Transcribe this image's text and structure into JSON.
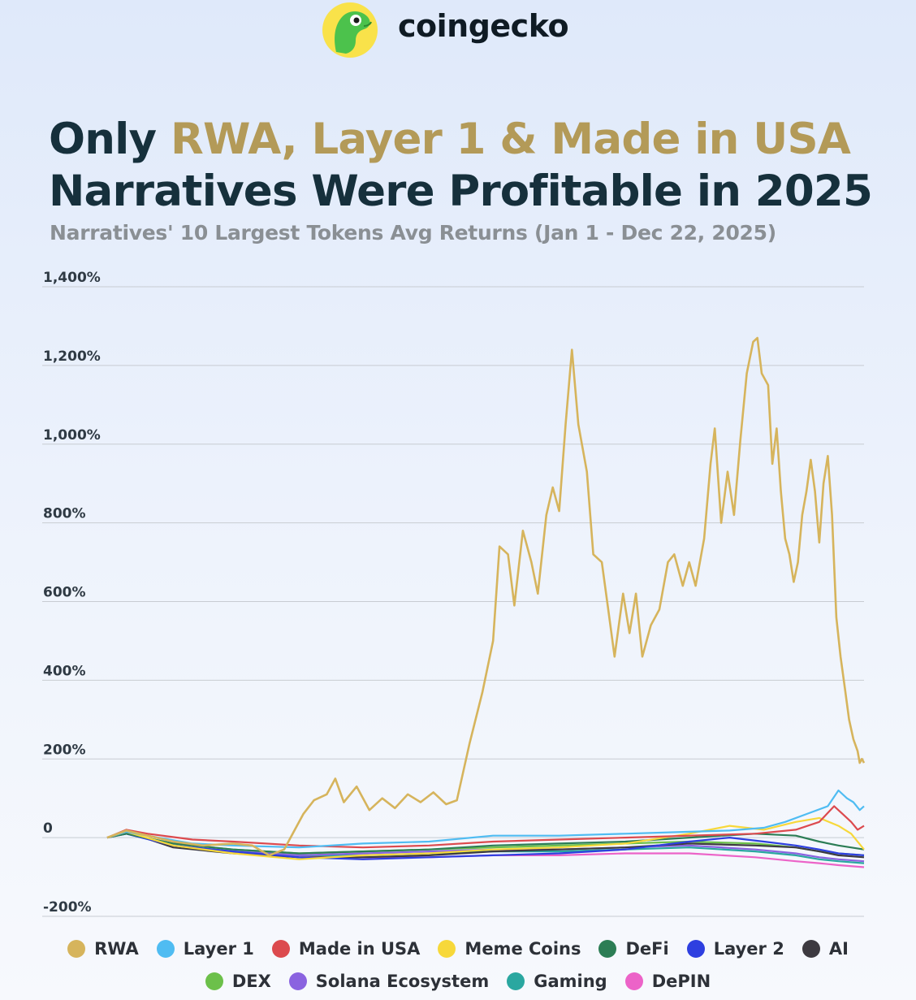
{
  "brand": {
    "name": "coingecko",
    "logo_icon": "gecko-logo-icon"
  },
  "header": {
    "title_pre": "Only ",
    "title_highlight": "RWA, Layer 1 & Made in USA",
    "title_post": "Narratives Were Profitable in 2025",
    "subtitle": "Narratives' 10 Largest Tokens Avg Returns (Jan 1 - Dec 22, 2025)"
  },
  "chart_data": {
    "type": "line",
    "title": "Only RWA, Layer 1 & Made in USA Narratives Were Profitable in 2025",
    "subtitle": "Narratives' 10 Largest Tokens Avg Returns (Jan 1 - Dec 22, 2025)",
    "xlabel": "",
    "ylabel": "",
    "x_range": [
      "2025-01-01",
      "2025-12-22"
    ],
    "ylim": [
      -200,
      1400
    ],
    "y_ticks": [
      -200,
      0,
      200,
      400,
      600,
      800,
      1000,
      1200,
      1400
    ],
    "y_tick_labels": [
      "-200%",
      "0",
      "200%",
      "400%",
      "600%",
      "800%",
      "1,000%",
      "1,200%",
      "1,400%"
    ],
    "grid": true,
    "legend_position": "bottom",
    "series": [
      {
        "name": "RWA",
        "color": "#d6b45c",
        "points": [
          [
            "2025-01-01",
            0
          ],
          [
            "2025-01-10",
            18
          ],
          [
            "2025-01-20",
            5
          ],
          [
            "2025-02-01",
            -10
          ],
          [
            "2025-02-15",
            -20
          ],
          [
            "2025-03-01",
            -15
          ],
          [
            "2025-03-10",
            -20
          ],
          [
            "2025-03-18",
            -45
          ],
          [
            "2025-03-25",
            -30
          ],
          [
            "2025-04-03",
            60
          ],
          [
            "2025-04-08",
            95
          ],
          [
            "2025-04-14",
            110
          ],
          [
            "2025-04-18",
            150
          ],
          [
            "2025-04-22",
            90
          ],
          [
            "2025-04-28",
            130
          ],
          [
            "2025-05-04",
            70
          ],
          [
            "2025-05-10",
            100
          ],
          [
            "2025-05-16",
            75
          ],
          [
            "2025-05-22",
            110
          ],
          [
            "2025-05-28",
            90
          ],
          [
            "2025-06-03",
            115
          ],
          [
            "2025-06-09",
            85
          ],
          [
            "2025-06-14",
            95
          ],
          [
            "2025-06-20",
            240
          ],
          [
            "2025-06-26",
            370
          ],
          [
            "2025-07-01",
            500
          ],
          [
            "2025-07-04",
            740
          ],
          [
            "2025-07-08",
            720
          ],
          [
            "2025-07-11",
            590
          ],
          [
            "2025-07-15",
            780
          ],
          [
            "2025-07-19",
            700
          ],
          [
            "2025-07-22",
            620
          ],
          [
            "2025-07-26",
            820
          ],
          [
            "2025-07-29",
            890
          ],
          [
            "2025-08-01",
            830
          ],
          [
            "2025-08-04",
            1050
          ],
          [
            "2025-08-07",
            1240
          ],
          [
            "2025-08-10",
            1050
          ],
          [
            "2025-08-14",
            930
          ],
          [
            "2025-08-17",
            720
          ],
          [
            "2025-08-21",
            700
          ],
          [
            "2025-08-24",
            580
          ],
          [
            "2025-08-27",
            460
          ],
          [
            "2025-08-31",
            620
          ],
          [
            "2025-09-03",
            520
          ],
          [
            "2025-09-06",
            620
          ],
          [
            "2025-09-09",
            460
          ],
          [
            "2025-09-13",
            540
          ],
          [
            "2025-09-17",
            580
          ],
          [
            "2025-09-21",
            700
          ],
          [
            "2025-09-24",
            720
          ],
          [
            "2025-09-28",
            640
          ],
          [
            "2025-10-01",
            700
          ],
          [
            "2025-10-04",
            640
          ],
          [
            "2025-10-08",
            760
          ],
          [
            "2025-10-11",
            950
          ],
          [
            "2025-10-13",
            1040
          ],
          [
            "2025-10-16",
            800
          ],
          [
            "2025-10-19",
            930
          ],
          [
            "2025-10-22",
            820
          ],
          [
            "2025-10-25",
            1010
          ],
          [
            "2025-10-28",
            1180
          ],
          [
            "2025-10-31",
            1260
          ],
          [
            "2025-11-02",
            1270
          ],
          [
            "2025-11-04",
            1180
          ],
          [
            "2025-11-07",
            1150
          ],
          [
            "2025-11-09",
            950
          ],
          [
            "2025-11-11",
            1040
          ],
          [
            "2025-11-13",
            880
          ],
          [
            "2025-11-15",
            760
          ],
          [
            "2025-11-17",
            720
          ],
          [
            "2025-11-19",
            650
          ],
          [
            "2025-11-21",
            700
          ],
          [
            "2025-11-23",
            820
          ],
          [
            "2025-11-25",
            880
          ],
          [
            "2025-11-27",
            960
          ],
          [
            "2025-11-29",
            880
          ],
          [
            "2025-12-01",
            750
          ],
          [
            "2025-12-03",
            900
          ],
          [
            "2025-12-05",
            970
          ],
          [
            "2025-12-07",
            820
          ],
          [
            "2025-12-09",
            560
          ],
          [
            "2025-12-11",
            460
          ],
          [
            "2025-12-13",
            380
          ],
          [
            "2025-12-15",
            300
          ],
          [
            "2025-12-17",
            250
          ],
          [
            "2025-12-19",
            220
          ],
          [
            "2025-12-20",
            190
          ],
          [
            "2025-12-21",
            200
          ],
          [
            "2025-12-22",
            190
          ]
        ]
      },
      {
        "name": "Layer 1",
        "color": "#4fbcf2",
        "points": [
          [
            "2025-01-01",
            0
          ],
          [
            "2025-01-10",
            15
          ],
          [
            "2025-01-25",
            0
          ],
          [
            "2025-02-10",
            -15
          ],
          [
            "2025-03-01",
            -20
          ],
          [
            "2025-04-01",
            -25
          ],
          [
            "2025-05-01",
            -15
          ],
          [
            "2025-06-01",
            -10
          ],
          [
            "2025-07-01",
            5
          ],
          [
            "2025-08-01",
            5
          ],
          [
            "2025-09-01",
            10
          ],
          [
            "2025-10-01",
            15
          ],
          [
            "2025-10-20",
            18
          ],
          [
            "2025-11-05",
            25
          ],
          [
            "2025-11-15",
            40
          ],
          [
            "2025-11-25",
            60
          ],
          [
            "2025-12-05",
            80
          ],
          [
            "2025-12-10",
            120
          ],
          [
            "2025-12-14",
            100
          ],
          [
            "2025-12-17",
            90
          ],
          [
            "2025-12-20",
            70
          ],
          [
            "2025-12-22",
            80
          ]
        ]
      },
      {
        "name": "Made in USA",
        "color": "#dc4a4e",
        "points": [
          [
            "2025-01-01",
            0
          ],
          [
            "2025-01-10",
            20
          ],
          [
            "2025-01-20",
            10
          ],
          [
            "2025-02-10",
            -5
          ],
          [
            "2025-03-01",
            -10
          ],
          [
            "2025-04-01",
            -20
          ],
          [
            "2025-05-01",
            -25
          ],
          [
            "2025-06-01",
            -20
          ],
          [
            "2025-07-01",
            -10
          ],
          [
            "2025-08-01",
            -5
          ],
          [
            "2025-09-01",
            0
          ],
          [
            "2025-10-01",
            5
          ],
          [
            "2025-11-01",
            10
          ],
          [
            "2025-11-20",
            20
          ],
          [
            "2025-12-01",
            40
          ],
          [
            "2025-12-08",
            80
          ],
          [
            "2025-12-12",
            60
          ],
          [
            "2025-12-16",
            40
          ],
          [
            "2025-12-19",
            20
          ],
          [
            "2025-12-22",
            30
          ]
        ]
      },
      {
        "name": "Meme Coins",
        "color": "#f7d83a",
        "points": [
          [
            "2025-01-01",
            0
          ],
          [
            "2025-01-10",
            15
          ],
          [
            "2025-02-01",
            -20
          ],
          [
            "2025-03-01",
            -40
          ],
          [
            "2025-04-01",
            -55
          ],
          [
            "2025-05-01",
            -45
          ],
          [
            "2025-06-01",
            -40
          ],
          [
            "2025-07-01",
            -30
          ],
          [
            "2025-08-01",
            -25
          ],
          [
            "2025-09-01",
            -15
          ],
          [
            "2025-10-01",
            10
          ],
          [
            "2025-10-20",
            30
          ],
          [
            "2025-11-05",
            20
          ],
          [
            "2025-11-20",
            40
          ],
          [
            "2025-12-01",
            50
          ],
          [
            "2025-12-10",
            30
          ],
          [
            "2025-12-16",
            10
          ],
          [
            "2025-12-22",
            -30
          ]
        ]
      },
      {
        "name": "DeFi",
        "color": "#2c7d55",
        "points": [
          [
            "2025-01-01",
            0
          ],
          [
            "2025-01-10",
            10
          ],
          [
            "2025-02-01",
            -15
          ],
          [
            "2025-03-01",
            -30
          ],
          [
            "2025-04-01",
            -40
          ],
          [
            "2025-05-01",
            -35
          ],
          [
            "2025-06-01",
            -30
          ],
          [
            "2025-07-01",
            -20
          ],
          [
            "2025-08-01",
            -15
          ],
          [
            "2025-09-01",
            -10
          ],
          [
            "2025-10-01",
            0
          ],
          [
            "2025-11-01",
            10
          ],
          [
            "2025-11-20",
            5
          ],
          [
            "2025-12-01",
            -10
          ],
          [
            "2025-12-10",
            -20
          ],
          [
            "2025-12-22",
            -30
          ]
        ]
      },
      {
        "name": "Layer 2",
        "color": "#2e3fe0",
        "points": [
          [
            "2025-01-01",
            0
          ],
          [
            "2025-01-10",
            10
          ],
          [
            "2025-02-01",
            -20
          ],
          [
            "2025-03-01",
            -35
          ],
          [
            "2025-04-01",
            -50
          ],
          [
            "2025-05-01",
            -55
          ],
          [
            "2025-06-01",
            -50
          ],
          [
            "2025-07-01",
            -45
          ],
          [
            "2025-08-01",
            -40
          ],
          [
            "2025-09-01",
            -30
          ],
          [
            "2025-10-01",
            -10
          ],
          [
            "2025-10-20",
            0
          ],
          [
            "2025-11-05",
            -10
          ],
          [
            "2025-11-20",
            -20
          ],
          [
            "2025-12-01",
            -30
          ],
          [
            "2025-12-10",
            -40
          ],
          [
            "2025-12-22",
            -45
          ]
        ]
      },
      {
        "name": "AI",
        "color": "#3d3a40",
        "points": [
          [
            "2025-01-01",
            0
          ],
          [
            "2025-01-10",
            15
          ],
          [
            "2025-02-01",
            -25
          ],
          [
            "2025-03-01",
            -40
          ],
          [
            "2025-04-01",
            -50
          ],
          [
            "2025-05-01",
            -50
          ],
          [
            "2025-06-01",
            -45
          ],
          [
            "2025-07-01",
            -35
          ],
          [
            "2025-08-01",
            -30
          ],
          [
            "2025-09-01",
            -25
          ],
          [
            "2025-10-01",
            -15
          ],
          [
            "2025-11-01",
            -20
          ],
          [
            "2025-11-20",
            -25
          ],
          [
            "2025-12-01",
            -35
          ],
          [
            "2025-12-10",
            -45
          ],
          [
            "2025-12-22",
            -50
          ]
        ]
      },
      {
        "name": "DEX",
        "color": "#6cc04a",
        "points": [
          [
            "2025-01-01",
            0
          ],
          [
            "2025-01-10",
            10
          ],
          [
            "2025-02-01",
            -15
          ],
          [
            "2025-03-01",
            -30
          ],
          [
            "2025-04-01",
            -40
          ],
          [
            "2025-05-01",
            -35
          ],
          [
            "2025-06-01",
            -30
          ],
          [
            "2025-07-01",
            -25
          ],
          [
            "2025-08-01",
            -20
          ],
          [
            "2025-09-01",
            -15
          ],
          [
            "2025-10-01",
            -10
          ],
          [
            "2025-11-01",
            -15
          ],
          [
            "2025-11-20",
            -25
          ],
          [
            "2025-12-01",
            -35
          ],
          [
            "2025-12-10",
            -40
          ],
          [
            "2025-12-22",
            -45
          ]
        ]
      },
      {
        "name": "Solana Ecosystem",
        "color": "#8a63e0",
        "points": [
          [
            "2025-01-01",
            0
          ],
          [
            "2025-01-10",
            12
          ],
          [
            "2025-02-01",
            -20
          ],
          [
            "2025-03-01",
            -35
          ],
          [
            "2025-04-01",
            -45
          ],
          [
            "2025-05-01",
            -40
          ],
          [
            "2025-06-01",
            -35
          ],
          [
            "2025-07-01",
            -30
          ],
          [
            "2025-08-01",
            -30
          ],
          [
            "2025-09-01",
            -25
          ],
          [
            "2025-10-01",
            -20
          ],
          [
            "2025-11-01",
            -30
          ],
          [
            "2025-11-20",
            -40
          ],
          [
            "2025-12-01",
            -50
          ],
          [
            "2025-12-10",
            -55
          ],
          [
            "2025-12-22",
            -60
          ]
        ]
      },
      {
        "name": "Gaming",
        "color": "#2aa7a0",
        "points": [
          [
            "2025-01-01",
            0
          ],
          [
            "2025-01-10",
            10
          ],
          [
            "2025-02-01",
            -20
          ],
          [
            "2025-03-01",
            -35
          ],
          [
            "2025-04-01",
            -45
          ],
          [
            "2025-05-01",
            -45
          ],
          [
            "2025-06-01",
            -40
          ],
          [
            "2025-07-01",
            -35
          ],
          [
            "2025-08-01",
            -35
          ],
          [
            "2025-09-01",
            -30
          ],
          [
            "2025-10-01",
            -25
          ],
          [
            "2025-11-01",
            -35
          ],
          [
            "2025-11-20",
            -45
          ],
          [
            "2025-12-01",
            -55
          ],
          [
            "2025-12-10",
            -60
          ],
          [
            "2025-12-22",
            -65
          ]
        ]
      },
      {
        "name": "DePIN",
        "color": "#ec63c8",
        "points": [
          [
            "2025-01-01",
            0
          ],
          [
            "2025-01-10",
            10
          ],
          [
            "2025-02-01",
            -20
          ],
          [
            "2025-03-01",
            -35
          ],
          [
            "2025-04-01",
            -45
          ],
          [
            "2025-05-01",
            -50
          ],
          [
            "2025-06-01",
            -50
          ],
          [
            "2025-07-01",
            -45
          ],
          [
            "2025-08-01",
            -45
          ],
          [
            "2025-09-01",
            -40
          ],
          [
            "2025-10-01",
            -40
          ],
          [
            "2025-11-01",
            -50
          ],
          [
            "2025-11-20",
            -60
          ],
          [
            "2025-12-01",
            -65
          ],
          [
            "2025-12-10",
            -70
          ],
          [
            "2025-12-22",
            -75
          ]
        ]
      }
    ]
  }
}
